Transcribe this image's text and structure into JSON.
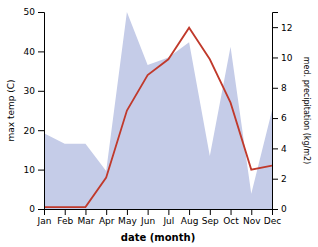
{
  "chart_data": {
    "type": "line",
    "categories": [
      "Jan",
      "Feb",
      "Mar",
      "Apr",
      "May",
      "Jun",
      "Jul",
      "Aug",
      "Sep",
      "Oct",
      "Nov",
      "Dec"
    ],
    "x_label": "date (month)",
    "y_label": "max temp (C)",
    "y2_label": "med. precipitation (kg/m2)",
    "ylim": [
      0,
      50
    ],
    "yticks": [
      0,
      10,
      20,
      30,
      40,
      50
    ],
    "y2lim": [
      0,
      13
    ],
    "y2ticks": [
      0,
      2,
      4,
      6,
      8,
      10,
      12
    ],
    "series": [
      {
        "type": "area",
        "axis": "y2",
        "color": "#c5cce8",
        "values": [
          5.0,
          4.3,
          4.3,
          2.5,
          13.0,
          9.5,
          10.0,
          11.0,
          3.5,
          10.7,
          1.0,
          6.5
        ]
      },
      {
        "type": "line",
        "color": "#c0392b",
        "values": [
          0.5,
          0.5,
          0.5,
          8,
          25,
          34,
          38,
          46,
          38,
          27,
          10,
          11
        ]
      }
    ]
  }
}
